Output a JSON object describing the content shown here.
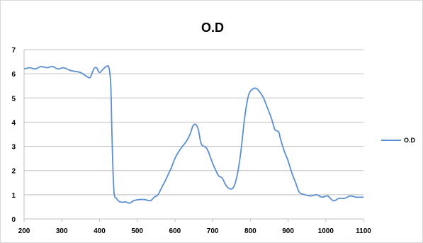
{
  "chart_data": {
    "type": "line",
    "title": "O.D",
    "xlabel": "",
    "ylabel": "",
    "xlim": [
      200,
      1100
    ],
    "ylim": [
      0,
      7
    ],
    "x_ticks": [
      "200",
      "300",
      "400",
      "500",
      "600",
      "700",
      "800",
      "900",
      "1000",
      "1100"
    ],
    "y_ticks": [
      "0",
      "1",
      "2",
      "3",
      "4",
      "5",
      "6",
      "7"
    ],
    "grid": "horizontal",
    "legend_position": "right",
    "series": [
      {
        "name": "O.D",
        "color": "#5b8fd1",
        "x": [
          200,
          215,
          230,
          245,
          260,
          275,
          290,
          305,
          320,
          335,
          350,
          365,
          375,
          385,
          392,
          400,
          410,
          418,
          425,
          430,
          433,
          438,
          445,
          455,
          470,
          480,
          490,
          505,
          520,
          535,
          545,
          555,
          565,
          575,
          590,
          600,
          615,
          630,
          640,
          648,
          655,
          662,
          670,
          685,
          700,
          715,
          725,
          735,
          745,
          755,
          765,
          775,
          785,
          795,
          805,
          815,
          825,
          835,
          845,
          855,
          865,
          875,
          880,
          890,
          900,
          910,
          920,
          930,
          945,
          960,
          975,
          990,
          1005,
          1020,
          1035,
          1050,
          1065,
          1080,
          1095,
          1100
        ],
        "y": [
          6.2,
          6.25,
          6.2,
          6.3,
          6.25,
          6.3,
          6.2,
          6.25,
          6.15,
          6.1,
          6.05,
          5.9,
          5.85,
          6.2,
          6.25,
          6.05,
          6.2,
          6.3,
          6.25,
          5.5,
          3.5,
          1.2,
          0.85,
          0.7,
          0.7,
          0.65,
          0.75,
          0.8,
          0.8,
          0.75,
          0.9,
          1.0,
          1.3,
          1.6,
          2.1,
          2.5,
          2.9,
          3.2,
          3.5,
          3.85,
          3.9,
          3.7,
          3.1,
          2.9,
          2.3,
          1.8,
          1.7,
          1.4,
          1.25,
          1.3,
          1.8,
          2.8,
          4.2,
          5.1,
          5.35,
          5.4,
          5.25,
          5.0,
          4.6,
          4.2,
          3.7,
          3.6,
          3.3,
          2.8,
          2.4,
          1.9,
          1.5,
          1.1,
          1.0,
          0.95,
          1.0,
          0.9,
          0.95,
          0.75,
          0.85,
          0.85,
          0.95,
          0.9,
          0.9,
          0.9
        ]
      }
    ]
  }
}
